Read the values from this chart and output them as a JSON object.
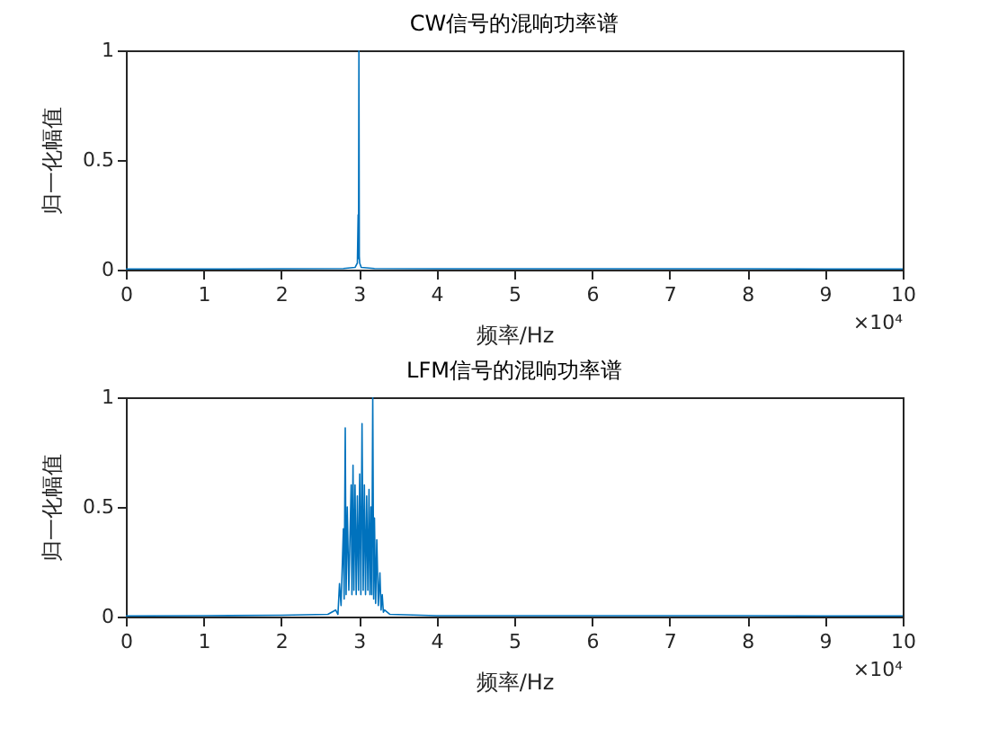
{
  "chart_data": [
    {
      "type": "line",
      "title": "CW信号的混响功率谱",
      "xlabel": "频率/Hz",
      "ylabel": "归一化幅值",
      "annotations": [
        "×10⁴"
      ],
      "xlim": [
        0,
        10
      ],
      "ylim": [
        0,
        1
      ],
      "xticks": [
        0,
        1,
        2,
        3,
        4,
        5,
        6,
        7,
        8,
        9,
        10
      ],
      "yticks": [
        0,
        0.5,
        1
      ],
      "series": [
        {
          "color": "#0072bd",
          "x": [
            0,
            1,
            2,
            2.8,
            2.95,
            2.98,
            2.99,
            2.995,
            3,
            3.005,
            3.01,
            3.03,
            3.2,
            4,
            5,
            6,
            7,
            8,
            9,
            10
          ],
          "values": [
            0.003,
            0.003,
            0.004,
            0.005,
            0.01,
            0.03,
            0.25,
            0.05,
            1,
            0.06,
            0.03,
            0.01,
            0.005,
            0.004,
            0.004,
            0.004,
            0.004,
            0.004,
            0.003,
            0.003
          ]
        }
      ]
    },
    {
      "type": "line",
      "title": "LFM信号的混响功率谱",
      "xlabel": "频率/Hz",
      "ylabel": "归一化幅值",
      "annotations": [
        "×10⁴"
      ],
      "xlim": [
        0,
        10
      ],
      "ylim": [
        0,
        1
      ],
      "xticks": [
        0,
        1,
        2,
        3,
        4,
        5,
        6,
        7,
        8,
        9,
        10
      ],
      "yticks": [
        0,
        0.5,
        1
      ],
      "series": [
        {
          "color": "#0072bd",
          "x": [
            0,
            1,
            2,
            2.6,
            2.7,
            2.73,
            2.75,
            2.77,
            2.8,
            2.81,
            2.824,
            2.835,
            2.85,
            2.87,
            2.9,
            2.91,
            2.924,
            2.935,
            2.95,
            2.965,
            2.98,
            2.995,
            3.01,
            3.025,
            3.04,
            3.055,
            3.07,
            3.085,
            3.1,
            3.115,
            3.13,
            3.142,
            3.155,
            3.165,
            3.178,
            3.19,
            3.2,
            3.215,
            3.23,
            3.25,
            3.27,
            3.285,
            3.3,
            3.315,
            3.33,
            3.4,
            4,
            5,
            6,
            7,
            8,
            9,
            10
          ],
          "values": [
            0.003,
            0.004,
            0.006,
            0.01,
            0.03,
            0.01,
            0.15,
            0.05,
            0.4,
            0.08,
            0.86,
            0.1,
            0.5,
            0.12,
            0.6,
            0.1,
            0.69,
            0.12,
            0.6,
            0.1,
            0.55,
            0.12,
            0.65,
            0.1,
            0.88,
            0.12,
            0.6,
            0.1,
            0.55,
            0.12,
            0.58,
            0.1,
            0.5,
            0.1,
            1,
            0.08,
            0.45,
            0.06,
            0.35,
            0.05,
            0.2,
            0.03,
            0.1,
            0.02,
            0.03,
            0.01,
            0.004,
            0.004,
            0.004,
            0.004,
            0.004,
            0.003,
            0.003
          ]
        }
      ]
    }
  ]
}
